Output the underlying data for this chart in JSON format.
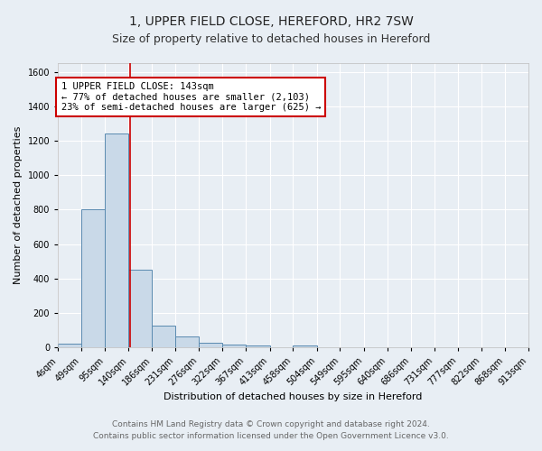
{
  "title": "1, UPPER FIELD CLOSE, HEREFORD, HR2 7SW",
  "subtitle": "Size of property relative to detached houses in Hereford",
  "xlabel": "Distribution of detached houses by size in Hereford",
  "ylabel": "Number of detached properties",
  "annotation_text": "1 UPPER FIELD CLOSE: 143sqm\n← 77% of detached houses are smaller (2,103)\n23% of semi-detached houses are larger (625) →",
  "footer_line1": "Contains HM Land Registry data © Crown copyright and database right 2024.",
  "footer_line2": "Contains public sector information licensed under the Open Government Licence v3.0.",
  "bar_edges": [
    4,
    49,
    95,
    140,
    186,
    231,
    276,
    322,
    367,
    413,
    458,
    504,
    549,
    595,
    640,
    686,
    731,
    777,
    822,
    868,
    913
  ],
  "bar_heights": [
    25,
    800,
    1240,
    450,
    130,
    65,
    28,
    18,
    15,
    0,
    15,
    0,
    0,
    0,
    0,
    0,
    0,
    0,
    0,
    0
  ],
  "bar_color": "#c9d9e8",
  "bar_edge_color": "#5a8ab0",
  "red_line_x": 143,
  "ylim": [
    0,
    1650
  ],
  "yticks": [
    0,
    200,
    400,
    600,
    800,
    1000,
    1200,
    1400,
    1600
  ],
  "background_color": "#e8eef4",
  "grid_color": "#ffffff",
  "annotation_box_color": "#ffffff",
  "annotation_box_edge": "#cc0000",
  "title_fontsize": 10,
  "subtitle_fontsize": 9,
  "axis_label_fontsize": 8,
  "tick_fontsize": 7,
  "annotation_fontsize": 7.5,
  "footer_fontsize": 6.5
}
